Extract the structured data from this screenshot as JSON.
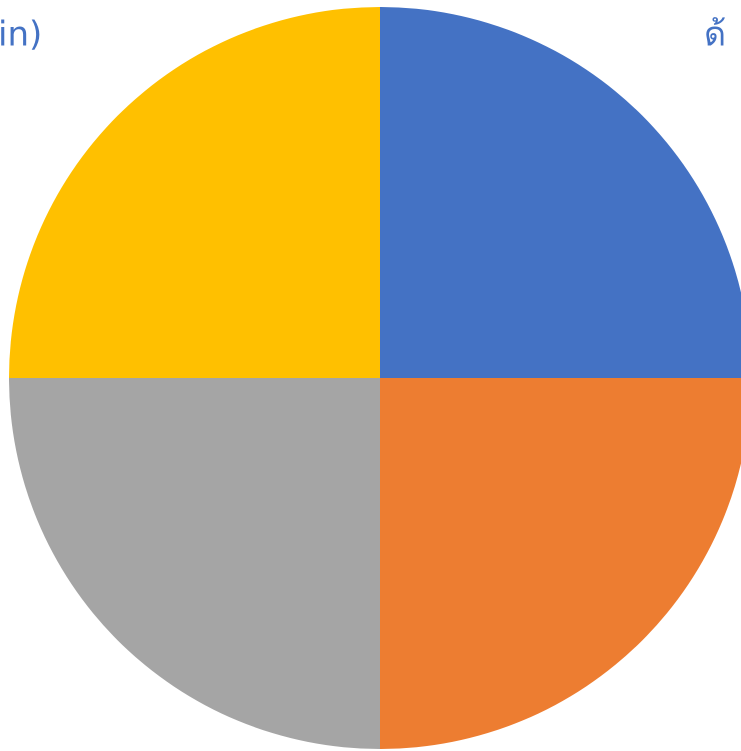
{
  "chart_data": {
    "type": "pie",
    "values": [
      25,
      25,
      25,
      25
    ],
    "colors": [
      "#4472c4",
      "#ed7d31",
      "#a5a5a5",
      "#ffc000"
    ],
    "annotations": [
      "in)",
      "ด้"
    ]
  }
}
